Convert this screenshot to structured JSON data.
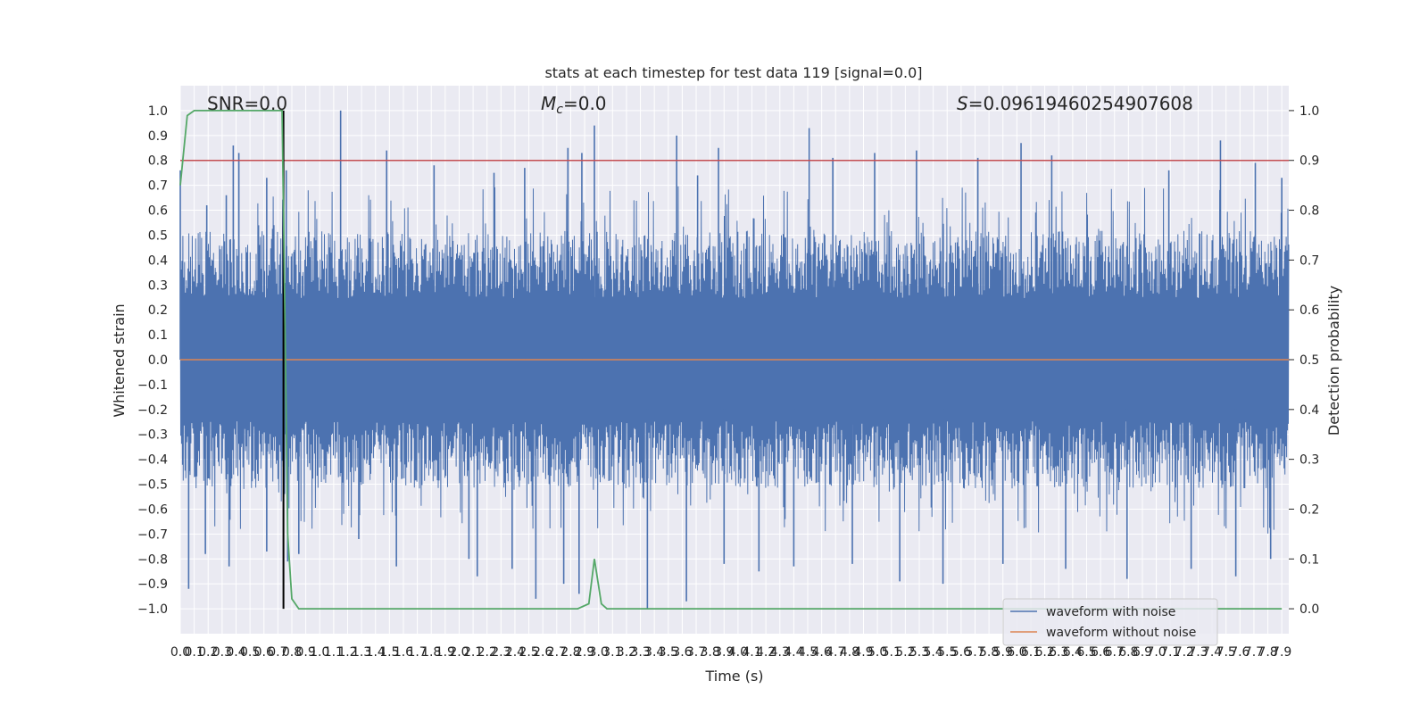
{
  "chart_data": {
    "type": "line",
    "title": "stats at each timestep for test data 119 [signal=0.0]",
    "xlabel": "Time (s)",
    "ylabel_left": "Whitened strain",
    "ylabel_right": "Detection probability",
    "xlim": [
      0,
      7.95
    ],
    "ylim_left": [
      -1.1,
      1.1
    ],
    "ylim_right": [
      -0.05,
      1.05
    ],
    "grid": true,
    "background": "#eaeaf2",
    "x_ticks": [
      "0.0",
      "0.1",
      "0.2",
      "0.3",
      "0.4",
      "0.5",
      "0.6",
      "0.7",
      "0.8",
      "0.9",
      "1.0",
      "1.1",
      "1.2",
      "1.3",
      "1.4",
      "1.5",
      "1.6",
      "1.7",
      "1.8",
      "1.9",
      "2.0",
      "2.1",
      "2.2",
      "2.3",
      "2.4",
      "2.5",
      "2.6",
      "2.7",
      "2.8",
      "2.9",
      "3.0",
      "3.1",
      "3.2",
      "3.3",
      "3.4",
      "3.5",
      "3.6",
      "3.7",
      "3.8",
      "3.9",
      "4.0",
      "4.1",
      "4.2",
      "4.3",
      "4.4",
      "4.5",
      "4.6",
      "4.7",
      "4.8",
      "4.9",
      "5.0",
      "5.1",
      "5.2",
      "5.3",
      "5.4",
      "5.5",
      "5.6",
      "5.7",
      "5.8",
      "5.9",
      "6.0",
      "6.1",
      "6.2",
      "6.3",
      "6.4",
      "6.5",
      "6.6",
      "6.7",
      "6.8",
      "6.9",
      "7.0",
      "7.1",
      "7.2",
      "7.3",
      "7.4",
      "7.5",
      "7.6",
      "7.7",
      "7.8",
      "7.9"
    ],
    "y_ticks_left": [
      "-1.0",
      "-0.9",
      "-0.8",
      "-0.7",
      "-0.6",
      "-0.5",
      "-0.4",
      "-0.3",
      "-0.2",
      "-0.1",
      "0.0",
      "0.1",
      "0.2",
      "0.3",
      "0.4",
      "0.5",
      "0.6",
      "0.7",
      "0.8",
      "0.9",
      "1.0"
    ],
    "y_ticks_right": [
      "0.0",
      "0.1",
      "0.2",
      "0.3",
      "0.4",
      "0.5",
      "0.6",
      "0.7",
      "0.8",
      "0.9",
      "1.0"
    ],
    "annotations": {
      "snr": "SNR=0.0",
      "mc_symbol": "M",
      "mc_subscript": "c",
      "mc_value": "=0.0",
      "s_symbol": "S",
      "s_value": "=0.09619460254907608"
    },
    "threshold_right": 0.9,
    "event_time": 0.74,
    "series": [
      {
        "name": "waveform with noise",
        "color": "#4c72b0",
        "axis": "left",
        "envelope": {
          "typical_min": -0.45,
          "typical_max": 0.45,
          "max": 1.0,
          "min": -1.0
        },
        "spikes_up": [
          [
            0.0,
            0.76
          ],
          [
            0.19,
            0.62
          ],
          [
            0.33,
            0.66
          ],
          [
            0.38,
            0.86
          ],
          [
            0.42,
            0.83
          ],
          [
            0.62,
            0.73
          ],
          [
            0.76,
            0.76
          ],
          [
            1.15,
            1.0
          ],
          [
            1.48,
            0.84
          ],
          [
            1.82,
            0.78
          ],
          [
            2.25,
            0.75
          ],
          [
            2.47,
            0.77
          ],
          [
            2.78,
            0.85
          ],
          [
            2.88,
            0.83
          ],
          [
            2.97,
            0.94
          ],
          [
            3.56,
            0.9
          ],
          [
            3.71,
            0.74
          ],
          [
            3.86,
            0.85
          ],
          [
            4.51,
            0.93
          ],
          [
            4.68,
            0.81
          ],
          [
            4.98,
            0.83
          ],
          [
            5.28,
            0.84
          ],
          [
            5.72,
            0.81
          ],
          [
            6.03,
            0.87
          ],
          [
            6.25,
            0.82
          ],
          [
            7.09,
            0.76
          ],
          [
            7.46,
            0.88
          ],
          [
            7.71,
            0.79
          ],
          [
            7.9,
            0.73
          ]
        ],
        "spikes_down": [
          [
            0.06,
            -0.92
          ],
          [
            0.18,
            -0.78
          ],
          [
            0.35,
            -0.83
          ],
          [
            0.62,
            -0.77
          ],
          [
            0.77,
            -0.81
          ],
          [
            0.85,
            -0.78
          ],
          [
            1.28,
            -0.72
          ],
          [
            1.55,
            -0.83
          ],
          [
            2.07,
            -0.8
          ],
          [
            2.13,
            -0.87
          ],
          [
            2.38,
            -0.84
          ],
          [
            2.55,
            -0.96
          ],
          [
            2.75,
            -0.9
          ],
          [
            2.86,
            -0.94
          ],
          [
            3.35,
            -1.0
          ],
          [
            3.63,
            -0.97
          ],
          [
            3.9,
            -0.82
          ],
          [
            4.15,
            -0.85
          ],
          [
            4.4,
            -0.83
          ],
          [
            4.82,
            -0.82
          ],
          [
            5.16,
            -0.89
          ],
          [
            5.47,
            -0.9
          ],
          [
            5.9,
            -0.82
          ],
          [
            6.35,
            -0.84
          ],
          [
            6.79,
            -0.88
          ],
          [
            7.25,
            -0.84
          ],
          [
            7.57,
            -0.87
          ],
          [
            7.82,
            -0.8
          ]
        ]
      },
      {
        "name": "waveform without noise",
        "color": "#dd8452",
        "axis": "left",
        "points": [
          [
            0.0,
            0.0
          ],
          [
            7.95,
            0.0
          ]
        ]
      },
      {
        "name": "detection probability",
        "color": "#55a868",
        "axis": "right",
        "points": [
          [
            0.0,
            0.85
          ],
          [
            0.05,
            0.99
          ],
          [
            0.1,
            1.0
          ],
          [
            0.73,
            1.0
          ],
          [
            0.75,
            0.6
          ],
          [
            0.77,
            0.15
          ],
          [
            0.8,
            0.02
          ],
          [
            0.85,
            0.0
          ],
          [
            2.85,
            0.0
          ],
          [
            2.93,
            0.01
          ],
          [
            2.97,
            0.1
          ],
          [
            3.02,
            0.01
          ],
          [
            3.06,
            0.0
          ],
          [
            7.9,
            0.0
          ]
        ]
      }
    ],
    "legend": {
      "placement": "lower right",
      "entries": [
        {
          "label": "waveform with noise",
          "color": "#4c72b0"
        },
        {
          "label": "waveform without noise",
          "color": "#dd8452"
        }
      ]
    }
  }
}
